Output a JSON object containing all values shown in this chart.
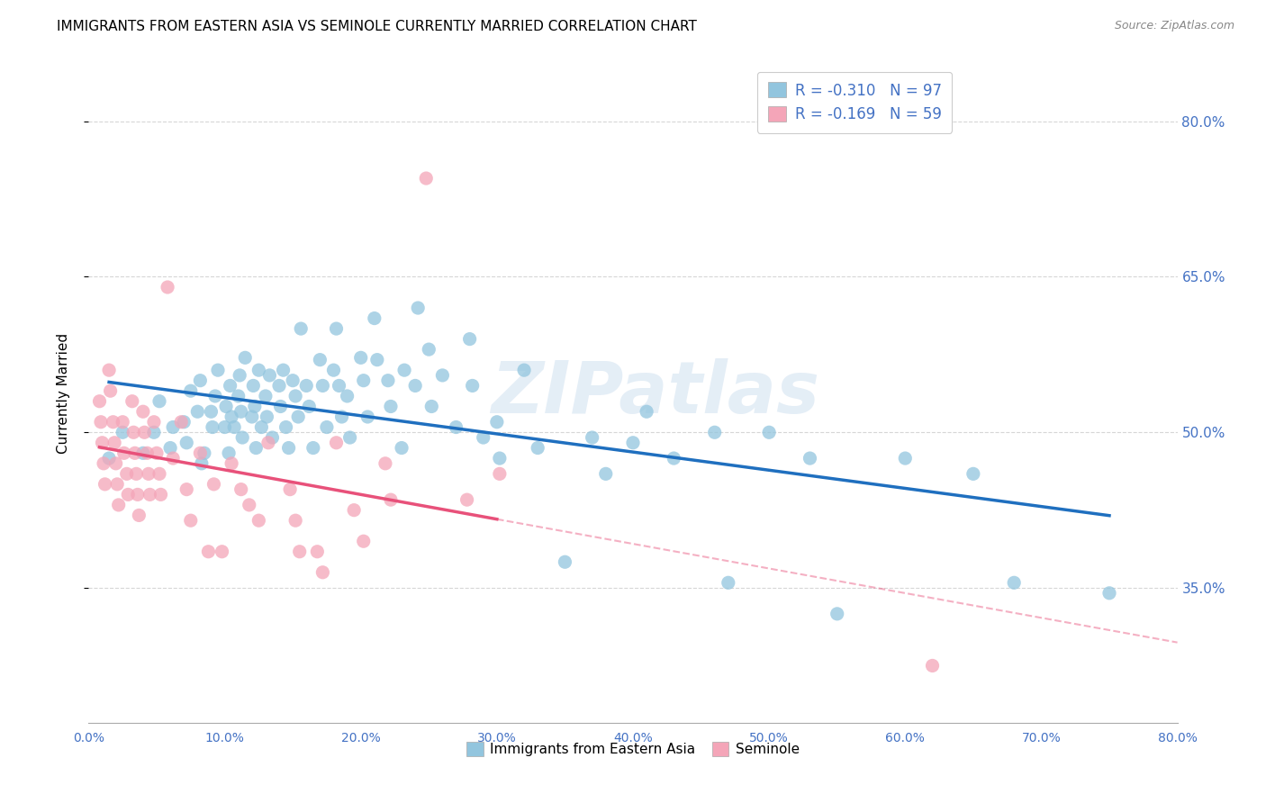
{
  "title": "IMMIGRANTS FROM EASTERN ASIA VS SEMINOLE CURRENTLY MARRIED CORRELATION CHART",
  "source": "Source: ZipAtlas.com",
  "ylabel": "Currently Married",
  "legend_label1": "Immigrants from Eastern Asia",
  "legend_label2": "Seminole",
  "watermark": "ZIPatlas",
  "blue_color": "#92c5de",
  "pink_color": "#f4a5b8",
  "blue_line_color": "#1f6fbf",
  "pink_line_color": "#e8517a",
  "axis_label_color": "#4472c4",
  "grid_color": "#cccccc",
  "background_color": "#ffffff",
  "xlim": [
    0.0,
    0.8
  ],
  "ylim": [
    0.22,
    0.855
  ],
  "yticks": [
    0.35,
    0.5,
    0.65,
    0.8
  ],
  "ytick_labels": [
    "35.0%",
    "50.0%",
    "65.0%",
    "80.0%"
  ],
  "xtick_count": 9,
  "blue_scatter_x": [
    0.015,
    0.025,
    0.04,
    0.048,
    0.052,
    0.06,
    0.062,
    0.07,
    0.072,
    0.075,
    0.08,
    0.082,
    0.083,
    0.085,
    0.09,
    0.091,
    0.093,
    0.095,
    0.1,
    0.101,
    0.103,
    0.104,
    0.105,
    0.107,
    0.11,
    0.111,
    0.112,
    0.113,
    0.115,
    0.12,
    0.121,
    0.122,
    0.123,
    0.125,
    0.127,
    0.13,
    0.131,
    0.133,
    0.135,
    0.14,
    0.141,
    0.143,
    0.145,
    0.147,
    0.15,
    0.152,
    0.154,
    0.156,
    0.16,
    0.162,
    0.165,
    0.17,
    0.172,
    0.175,
    0.18,
    0.182,
    0.184,
    0.186,
    0.19,
    0.192,
    0.2,
    0.202,
    0.205,
    0.21,
    0.212,
    0.22,
    0.222,
    0.23,
    0.232,
    0.24,
    0.242,
    0.25,
    0.252,
    0.26,
    0.27,
    0.28,
    0.282,
    0.29,
    0.3,
    0.302,
    0.32,
    0.33,
    0.35,
    0.37,
    0.38,
    0.4,
    0.41,
    0.43,
    0.46,
    0.47,
    0.5,
    0.53,
    0.55,
    0.6,
    0.65,
    0.68,
    0.75
  ],
  "blue_scatter_y": [
    0.475,
    0.5,
    0.48,
    0.5,
    0.53,
    0.485,
    0.505,
    0.51,
    0.49,
    0.54,
    0.52,
    0.55,
    0.47,
    0.48,
    0.52,
    0.505,
    0.535,
    0.56,
    0.505,
    0.525,
    0.48,
    0.545,
    0.515,
    0.505,
    0.535,
    0.555,
    0.52,
    0.495,
    0.572,
    0.515,
    0.545,
    0.525,
    0.485,
    0.56,
    0.505,
    0.535,
    0.515,
    0.555,
    0.495,
    0.545,
    0.525,
    0.56,
    0.505,
    0.485,
    0.55,
    0.535,
    0.515,
    0.6,
    0.545,
    0.525,
    0.485,
    0.57,
    0.545,
    0.505,
    0.56,
    0.6,
    0.545,
    0.515,
    0.535,
    0.495,
    0.572,
    0.55,
    0.515,
    0.61,
    0.57,
    0.55,
    0.525,
    0.485,
    0.56,
    0.545,
    0.62,
    0.58,
    0.525,
    0.555,
    0.505,
    0.59,
    0.545,
    0.495,
    0.51,
    0.475,
    0.56,
    0.485,
    0.375,
    0.495,
    0.46,
    0.49,
    0.52,
    0.475,
    0.5,
    0.355,
    0.5,
    0.475,
    0.325,
    0.475,
    0.46,
    0.355,
    0.345
  ],
  "pink_scatter_x": [
    0.008,
    0.009,
    0.01,
    0.011,
    0.012,
    0.015,
    0.016,
    0.018,
    0.019,
    0.02,
    0.021,
    0.022,
    0.025,
    0.026,
    0.028,
    0.029,
    0.032,
    0.033,
    0.034,
    0.035,
    0.036,
    0.037,
    0.04,
    0.041,
    0.043,
    0.044,
    0.045,
    0.048,
    0.05,
    0.052,
    0.053,
    0.058,
    0.062,
    0.068,
    0.072,
    0.075,
    0.082,
    0.088,
    0.092,
    0.098,
    0.105,
    0.112,
    0.118,
    0.125,
    0.132,
    0.148,
    0.152,
    0.155,
    0.168,
    0.172,
    0.182,
    0.195,
    0.202,
    0.218,
    0.222,
    0.248,
    0.278,
    0.302,
    0.62
  ],
  "pink_scatter_y": [
    0.53,
    0.51,
    0.49,
    0.47,
    0.45,
    0.56,
    0.54,
    0.51,
    0.49,
    0.47,
    0.45,
    0.43,
    0.51,
    0.48,
    0.46,
    0.44,
    0.53,
    0.5,
    0.48,
    0.46,
    0.44,
    0.42,
    0.52,
    0.5,
    0.48,
    0.46,
    0.44,
    0.51,
    0.48,
    0.46,
    0.44,
    0.64,
    0.475,
    0.51,
    0.445,
    0.415,
    0.48,
    0.385,
    0.45,
    0.385,
    0.47,
    0.445,
    0.43,
    0.415,
    0.49,
    0.445,
    0.415,
    0.385,
    0.385,
    0.365,
    0.49,
    0.425,
    0.395,
    0.47,
    0.435,
    0.745,
    0.435,
    0.46,
    0.275
  ]
}
